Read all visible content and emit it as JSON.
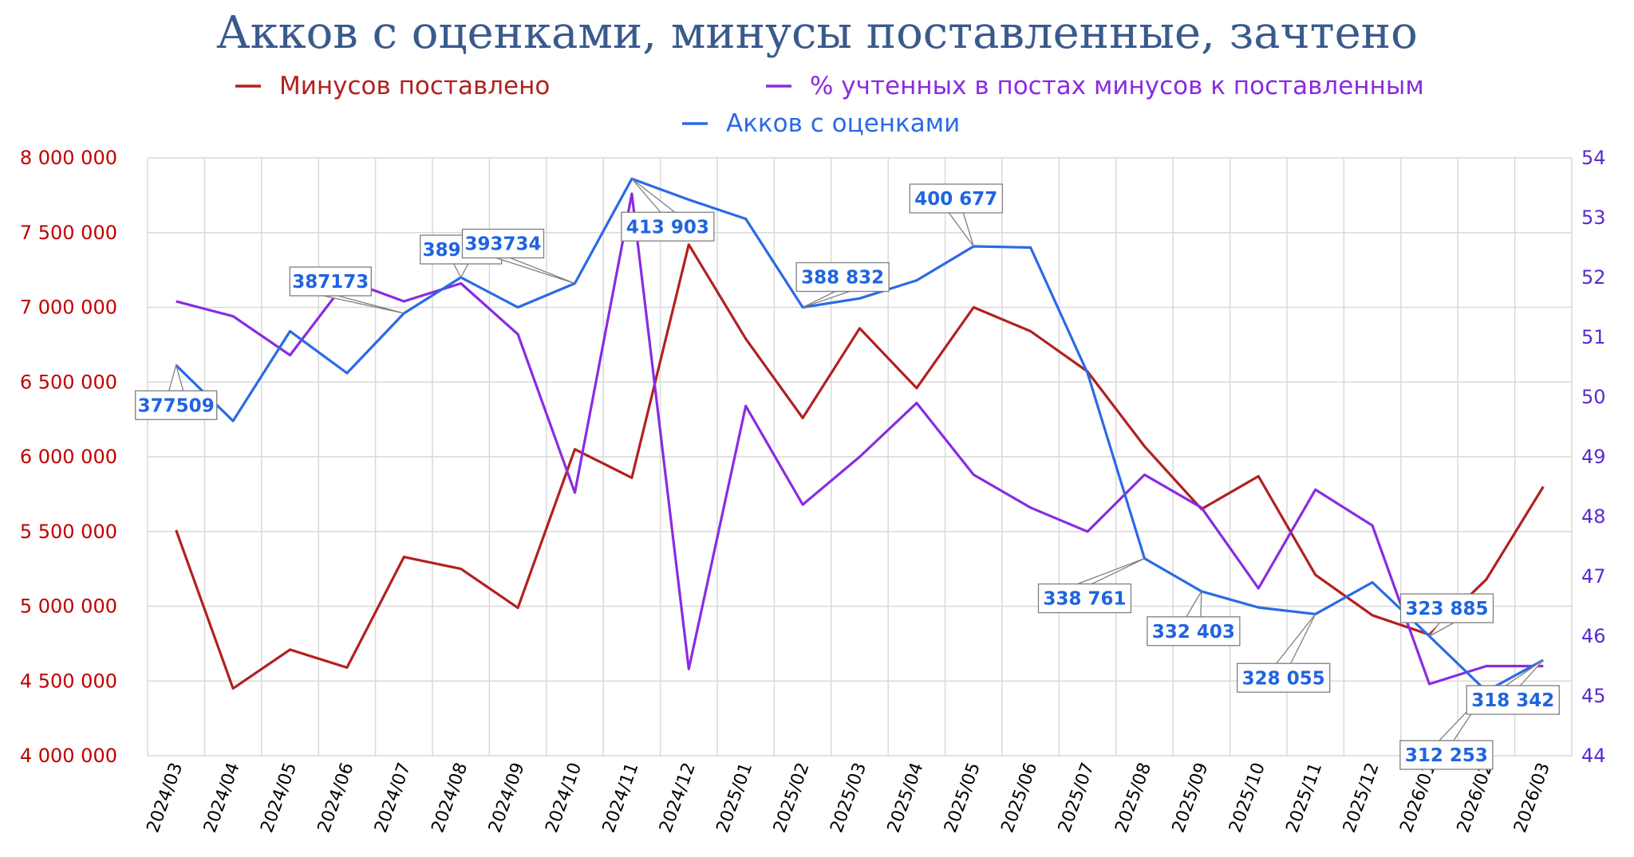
{
  "chart_data": {
    "type": "line",
    "title": "Акков с оценками, минусы поставленные, зачтено",
    "categories": [
      "2024/03",
      "2024/04",
      "2024/05",
      "2024/06",
      "2024/07",
      "2024/08",
      "2024/09",
      "2024/10",
      "2024/11",
      "2024/12",
      "2025/01",
      "2025/02",
      "2025/03",
      "2025/04",
      "2025/05",
      "2025/06",
      "2025/07",
      "2025/08",
      "2025/09",
      "2025/10",
      "2025/11",
      "2025/12",
      "2026/01",
      "2026/02",
      "2026/03"
    ],
    "y_left": {
      "ylim": [
        4000000,
        8000000
      ],
      "ticks": [
        {
          "value": 4000000,
          "label": "4 000 000"
        },
        {
          "value": 4500000,
          "label": "4 500 000"
        },
        {
          "value": 5000000,
          "label": "5 000 000"
        },
        {
          "value": 5500000,
          "label": "5 500 000"
        },
        {
          "value": 6000000,
          "label": "6 000 000"
        },
        {
          "value": 6500000,
          "label": "6 500 000"
        },
        {
          "value": 7000000,
          "label": "7 000 000"
        },
        {
          "value": 7500000,
          "label": "7 500 000"
        },
        {
          "value": 8000000,
          "label": "8 000 000"
        }
      ],
      "color": "#c00000"
    },
    "y_right": {
      "ylim": [
        44,
        54
      ],
      "ticks": [
        {
          "value": 44,
          "label": "44"
        },
        {
          "value": 45,
          "label": "45"
        },
        {
          "value": 46,
          "label": "46"
        },
        {
          "value": 47,
          "label": "47"
        },
        {
          "value": 48,
          "label": "48"
        },
        {
          "value": 49,
          "label": "49"
        },
        {
          "value": 50,
          "label": "50"
        },
        {
          "value": 51,
          "label": "51"
        },
        {
          "value": 52,
          "label": "52"
        },
        {
          "value": 53,
          "label": "53"
        },
        {
          "value": 54,
          "label": "54"
        }
      ],
      "color": "#5a2ad0"
    },
    "legend_position": "top",
    "grid": true,
    "series": [
      {
        "name": "Минусов поставлено",
        "axis": "left",
        "color": "#b22020",
        "values": [
          5510000,
          4450000,
          4710000,
          4590000,
          5330000,
          5250000,
          4990000,
          6050000,
          5860000,
          7420000,
          6790000,
          6260000,
          6860000,
          6460000,
          7000000,
          6840000,
          6570000,
          6070000,
          5650000,
          5870000,
          5210000,
          4940000,
          4810000,
          5180000,
          5800000
        ]
      },
      {
        "name": "% учтенных в постах минусов к поставленным",
        "axis": "right",
        "color": "#8a2be2",
        "values": [
          51.6,
          51.35,
          50.7,
          51.95,
          51.6,
          51.9,
          51.05,
          48.4,
          53.4,
          45.45,
          49.85,
          48.2,
          49.0,
          49.9,
          48.7,
          48.15,
          47.75,
          48.7,
          48.15,
          46.8,
          48.45,
          47.85,
          45.2,
          45.5,
          45.5
        ]
      },
      {
        "name": "Акков с оценками",
        "axis": "right",
        "color": "#2a6ae6",
        "values": [
          50.53,
          49.6,
          51.1,
          50.4,
          51.4,
          52.0,
          51.5,
          51.9,
          53.65,
          53.3,
          52.98,
          51.5,
          51.65,
          51.95,
          52.52,
          52.5,
          50.4,
          47.3,
          46.75,
          46.48,
          46.37,
          46.9,
          46.0,
          45.08,
          45.6
        ]
      }
    ],
    "annotations": [
      {
        "label": "377509",
        "series": "Акков с оценками",
        "category": "2024/03"
      },
      {
        "label": "387173",
        "series": "Акков с оценками",
        "category": "2024/07"
      },
      {
        "label": "389236",
        "series": "Акков с оценками",
        "category": "2024/08"
      },
      {
        "label": "393734",
        "series": "Акков с оценками",
        "category": "2024/10"
      },
      {
        "label": "413 903",
        "series": "Акков с оценками",
        "category": "2024/11"
      },
      {
        "label": "388 832",
        "series": "Акков с оценками",
        "category": "2025/02"
      },
      {
        "label": "400 677",
        "series": "Акков с оценками",
        "category": "2025/05"
      },
      {
        "label": "338 761",
        "series": "Акков с оценками",
        "category": "2025/08"
      },
      {
        "label": "332 403",
        "series": "Акков с оценками",
        "category": "2025/09"
      },
      {
        "label": "328 055",
        "series": "Акков с оценками",
        "category": "2025/11"
      },
      {
        "label": "323 885",
        "series": "Акков с оценками",
        "category": "2026/01"
      },
      {
        "label": "312 253",
        "series": "Акков с оценками",
        "category": "2026/02"
      },
      {
        "label": "318 342",
        "series": "Акков с оценками",
        "category": "2026/03"
      }
    ]
  }
}
